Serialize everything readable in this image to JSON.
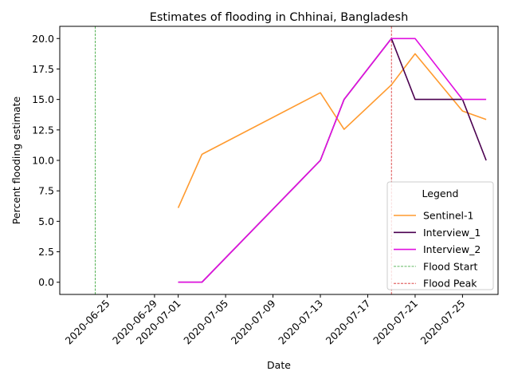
{
  "chart_data": {
    "type": "line",
    "title": "Estimates of flooding in Chhinai, Bangladesh",
    "xlabel": "Date",
    "ylabel": "Percent flooding estimate",
    "xlim": [
      "2020-06-21",
      "2020-07-28"
    ],
    "ylim": [
      -1.0,
      21.0
    ],
    "x_ticks": [
      "2020-06-25",
      "2020-06-29",
      "2020-07-01",
      "2020-07-05",
      "2020-07-09",
      "2020-07-13",
      "2020-07-17",
      "2020-07-21",
      "2020-07-25"
    ],
    "y_ticks": [
      "0.0",
      "2.5",
      "5.0",
      "7.5",
      "10.0",
      "12.5",
      "15.0",
      "17.5",
      "20.0"
    ],
    "grid": false,
    "legend_title": "Legend",
    "legend_position": "lower-right",
    "series": [
      {
        "name": "Sentinel-1",
        "color": "#ff9a2e",
        "style": "solid",
        "x": [
          "2020-07-01",
          "2020-07-03",
          "2020-07-13",
          "2020-07-15",
          "2020-07-19",
          "2020-07-21",
          "2020-07-25",
          "2020-07-27"
        ],
        "y": [
          6.1,
          10.5,
          15.55,
          12.55,
          16.2,
          18.75,
          14.05,
          13.35
        ]
      },
      {
        "name": "Interview_1",
        "color": "#4b0050",
        "style": "solid",
        "x": [
          "2020-07-01",
          "2020-07-03",
          "2020-07-13",
          "2020-07-15",
          "2020-07-19",
          "2020-07-21",
          "2020-07-25",
          "2020-07-27"
        ],
        "y": [
          0.0,
          0.0,
          10.0,
          15.0,
          20.0,
          15.0,
          15.0,
          10.0
        ]
      },
      {
        "name": "Interview_2",
        "color": "#e010e0",
        "style": "solid",
        "x": [
          "2020-07-01",
          "2020-07-03",
          "2020-07-13",
          "2020-07-15",
          "2020-07-19",
          "2020-07-21",
          "2020-07-25",
          "2020-07-27"
        ],
        "y": [
          0.0,
          0.0,
          10.0,
          15.0,
          20.0,
          20.0,
          15.0,
          15.0
        ]
      }
    ],
    "vlines": [
      {
        "name": "Flood Start",
        "x": "2020-06-24",
        "color": "#2ca02c",
        "style": "dashed"
      },
      {
        "name": "Flood Peak",
        "x": "2020-07-19",
        "color": "#d62728",
        "style": "dashed"
      }
    ]
  }
}
